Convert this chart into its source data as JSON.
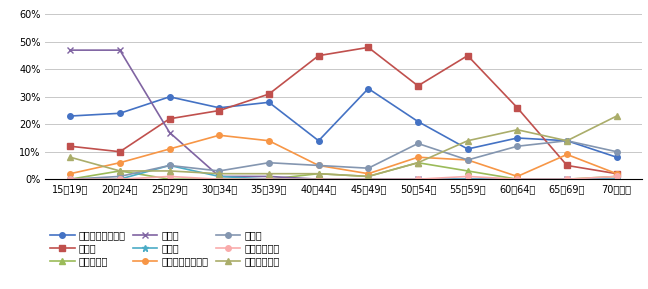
{
  "categories": [
    "15【19歳",
    "20【24歳",
    "25【29歳",
    "30【34歳",
    "35【39歳",
    "40【44歳",
    "45【49歳",
    "50【54歳",
    "55【59歳",
    "60【64歳",
    "65【69歳",
    "70歳以上"
  ],
  "series": {
    "s1": [
      23,
      24,
      30,
      26,
      28,
      14,
      33,
      21,
      11,
      15,
      14,
      8
    ],
    "s2": [
      12,
      10,
      22,
      25,
      31,
      45,
      48,
      34,
      45,
      26,
      5,
      2
    ],
    "s3": [
      0,
      3,
      0,
      0,
      0,
      2,
      1,
      6,
      3,
      0,
      0,
      1
    ],
    "s4": [
      47,
      47,
      17,
      1,
      1,
      0,
      0,
      0,
      0,
      0,
      0,
      0
    ],
    "s5": [
      0,
      0,
      5,
      1,
      0,
      0,
      0,
      0,
      0,
      0,
      0,
      0
    ],
    "s6": [
      2,
      6,
      11,
      16,
      14,
      5,
      2,
      8,
      7,
      1,
      9,
      2
    ],
    "s7": [
      0,
      1,
      5,
      3,
      6,
      5,
      4,
      13,
      7,
      12,
      14,
      10
    ],
    "s8": [
      0,
      0,
      1,
      0,
      0,
      0,
      0,
      0,
      1,
      0,
      0,
      1
    ],
    "s9": [
      8,
      3,
      3,
      2,
      2,
      2,
      1,
      6,
      14,
      18,
      14,
      23
    ]
  },
  "legend_labels": [
    "就職・転職・転業",
    "転　動",
    "退職・廃業",
    "就　学",
    "卒　業",
    "結婚・離婚・縁組",
    "住　宅",
    "交通の利便性",
    "生活の利便性"
  ],
  "colors": [
    "#4472C4",
    "#C0504D",
    "#9BBB59",
    "#8064A2",
    "#4BACC6",
    "#F79646",
    "#8496B0",
    "#F9ABAB",
    "#AAAD6A"
  ],
  "markers": [
    "o",
    "s",
    "^",
    "x",
    "*",
    "o",
    "o",
    "o",
    "^"
  ],
  "ylim": [
    0,
    60
  ],
  "yticks": [
    0,
    10,
    20,
    30,
    40,
    50,
    60
  ],
  "ytick_labels": [
    "0%",
    "10%",
    "20%",
    "30%",
    "40%",
    "50%",
    "60%"
  ],
  "bg_color": "#FFFFFF",
  "grid_color": "#C8C8C8"
}
